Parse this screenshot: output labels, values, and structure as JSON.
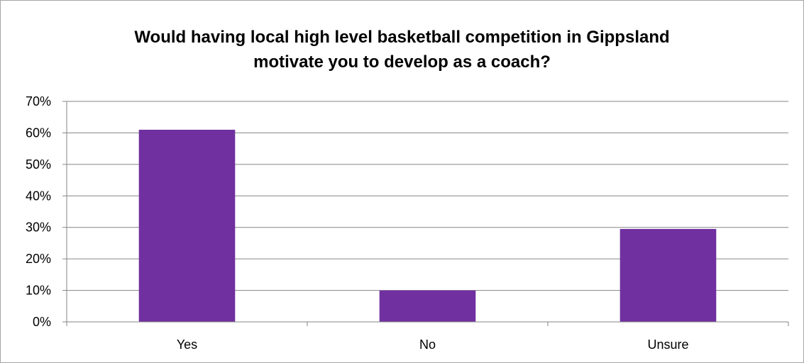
{
  "chart_data": {
    "type": "bar",
    "title_lines": [
      "Would having local high level basketball competition in Gippsland",
      "motivate you to develop as a coach?"
    ],
    "categories": [
      "Yes",
      "No",
      "Unsure"
    ],
    "values": [
      0.61,
      0.1,
      0.295
    ],
    "ylim": [
      0,
      0.7
    ],
    "y_ticks": [
      "0%",
      "10%",
      "20%",
      "30%",
      "40%",
      "50%",
      "60%",
      "70%"
    ],
    "grid": true,
    "bar_color": "#7030a0",
    "grid_color": "#868686"
  }
}
